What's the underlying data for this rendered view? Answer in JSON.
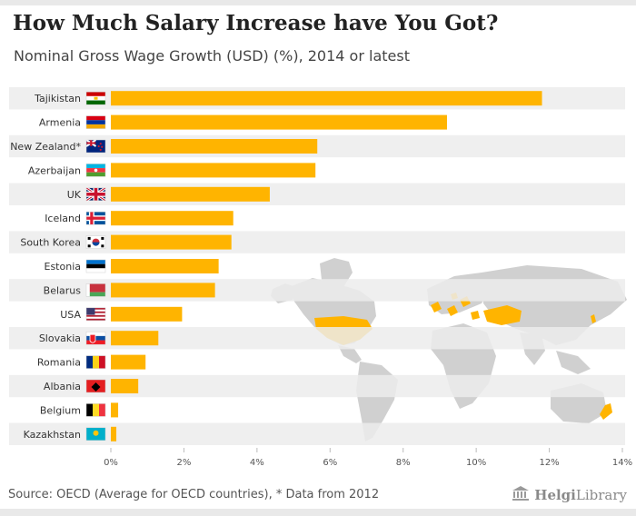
{
  "header": {
    "title": "How Much Salary Increase have You Got?",
    "subtitle": "Nominal Gross Wage Growth (USD) (%), 2014 or latest"
  },
  "footer": {
    "source": "Source: OECD (Average for OECD countries), * Data from 2012",
    "brand_name": "Helgi",
    "brand_suffix": "Library"
  },
  "colors": {
    "bar": "#ffb400",
    "row_band": "#ececec",
    "map": "#d0d0d0",
    "map_highlight": "#ffb400"
  },
  "chart_data": {
    "type": "bar",
    "orientation": "horizontal",
    "title": "How Much Salary Increase have You Got?",
    "subtitle": "Nominal Gross Wage Growth (USD) (%), 2014 or latest",
    "xlabel": "",
    "ylabel": "",
    "xlim": [
      0,
      14
    ],
    "xticks": [
      0,
      2,
      4,
      6,
      8,
      10,
      12,
      14
    ],
    "tick_suffix": "%",
    "categories": [
      "Tajikistan",
      "Armenia",
      "New Zealand*",
      "Azerbaijan",
      "UK",
      "Iceland",
      "South Korea",
      "Estonia",
      "Belarus",
      "USA",
      "Slovakia",
      "Romania",
      "Albania",
      "Belgium",
      "Kazakhstan"
    ],
    "values": [
      11.8,
      9.2,
      5.65,
      5.6,
      4.35,
      3.35,
      3.3,
      2.95,
      2.85,
      1.95,
      1.3,
      0.95,
      0.75,
      0.2,
      0.15
    ],
    "flags": [
      "tj",
      "am",
      "nz",
      "az",
      "uk",
      "is",
      "kr",
      "ee",
      "by",
      "us",
      "sk",
      "ro",
      "al",
      "be",
      "kz"
    ]
  }
}
